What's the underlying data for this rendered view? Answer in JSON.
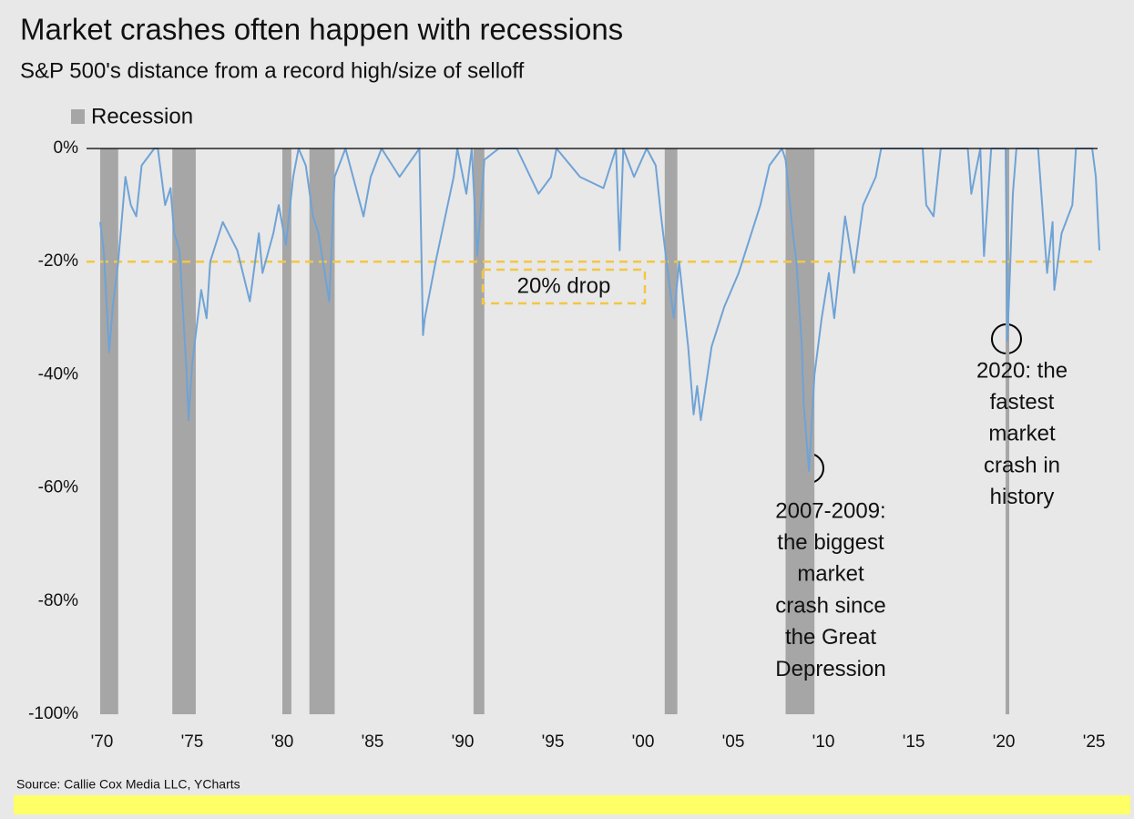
{
  "chart_data": {
    "type": "line",
    "title": "Market crashes often happen with recessions",
    "subtitle": "S&P 500's distance from a record high/size of selloff",
    "source": "Source: Callie Cox Media LLC, YCharts",
    "color": "#6fa3d6",
    "x": [
      1969.9,
      1970.1,
      1970.4,
      1970.6,
      1970.9,
      1971.3,
      1971.6,
      1971.9,
      1972.2,
      1972.9,
      1973.1,
      1973.5,
      1973.8,
      1974.0,
      1974.3,
      1974.7,
      1974.8,
      1975.0,
      1975.5,
      1975.8,
      1976.0,
      1976.7,
      1977.5,
      1978.2,
      1978.7,
      1978.9,
      1979.5,
      1979.8,
      1980.2,
      1980.6,
      1980.9,
      1981.3,
      1981.7,
      1982.0,
      1982.6,
      1982.9,
      1983.5,
      1984.5,
      1984.9,
      1985.5,
      1986.5,
      1987.6,
      1987.8,
      1987.9,
      1988.5,
      1989.5,
      1989.7,
      1990.2,
      1990.5,
      1990.8,
      1991.2,
      1992.0,
      1993.0,
      1994.2,
      1994.9,
      1995.2,
      1996.5,
      1997.8,
      1998.5,
      1998.7,
      1998.9,
      1999.5,
      2000.2,
      2000.7,
      2001.0,
      2001.3,
      2001.7,
      2002.0,
      2002.5,
      2002.8,
      2003.0,
      2003.2,
      2003.8,
      2004.5,
      2005.3,
      2006.5,
      2007.0,
      2007.7,
      2007.9,
      2008.3,
      2008.5,
      2008.8,
      2008.9,
      2009.2,
      2009.5,
      2009.9,
      2010.3,
      2010.6,
      2011.2,
      2011.7,
      2012.2,
      2012.9,
      2013.2,
      2014.0,
      2015.5,
      2015.7,
      2016.1,
      2016.5,
      2017.0,
      2018.0,
      2018.2,
      2018.7,
      2018.9,
      2019.3,
      2019.9,
      2020.1,
      2020.2,
      2020.5,
      2020.7,
      2021.5,
      2021.9,
      2022.4,
      2022.7,
      2022.8,
      2023.2,
      2023.8,
      2024.0,
      2024.5,
      2024.9,
      2025.1,
      2025.3
    ],
    "values": [
      -13,
      -18,
      -36,
      -28,
      -20,
      -5,
      -10,
      -12,
      -3,
      0,
      0,
      -10,
      -7,
      -15,
      -18,
      -40,
      -48,
      -38,
      -25,
      -30,
      -20,
      -13,
      -18,
      -27,
      -15,
      -22,
      -15,
      -10,
      -17,
      -5,
      0,
      -3,
      -12,
      -15,
      -27,
      -5,
      0,
      -12,
      -5,
      0,
      -5,
      0,
      -33,
      -30,
      -20,
      -5,
      0,
      -8,
      0,
      -19,
      -2,
      0,
      0,
      -8,
      -5,
      0,
      -5,
      -7,
      0,
      -18,
      0,
      -5,
      0,
      -3,
      -12,
      -20,
      -30,
      -20,
      -35,
      -47,
      -42,
      -48,
      -35,
      -28,
      -22,
      -10,
      -3,
      0,
      -2,
      -15,
      -20,
      -35,
      -45,
      -57,
      -40,
      -30,
      -22,
      -30,
      -12,
      -22,
      -10,
      -5,
      0,
      0,
      0,
      -10,
      -12,
      0,
      0,
      0,
      -8,
      0,
      -19,
      0,
      0,
      0,
      -34,
      -8,
      0,
      0,
      0,
      -22,
      -13,
      -25,
      -15,
      -10,
      0,
      0,
      0,
      -5,
      -18
    ],
    "xlim": [
      1969.8,
      2025.5
    ],
    "xticks": [
      {
        "value": 1970,
        "label": "'70"
      },
      {
        "value": 1975,
        "label": "'75"
      },
      {
        "value": 1980,
        "label": "'80"
      },
      {
        "value": 1985,
        "label": "'85"
      },
      {
        "value": 1990,
        "label": "'90"
      },
      {
        "value": 1995,
        "label": "'95"
      },
      {
        "value": 2000,
        "label": "'00"
      },
      {
        "value": 2005,
        "label": "'05"
      },
      {
        "value": 2010,
        "label": "'10"
      },
      {
        "value": 2015,
        "label": "'15"
      },
      {
        "value": 2020,
        "label": "'20"
      },
      {
        "value": 2025,
        "label": "'25"
      }
    ],
    "ylim": [
      -100,
      0
    ],
    "yticks": [
      {
        "value": 0,
        "label": "0%"
      },
      {
        "value": -20,
        "label": "-20%"
      },
      {
        "value": -40,
        "label": "-40%"
      },
      {
        "value": -60,
        "label": "-60%"
      },
      {
        "value": -80,
        "label": "-80%"
      },
      {
        "value": -100,
        "label": "-100%"
      }
    ],
    "recessions": {
      "name": "Recession",
      "color": "#a6a6a6",
      "spans": [
        [
          1969.9,
          1970.9
        ],
        [
          1973.9,
          1975.2
        ],
        [
          1980.0,
          1980.5
        ],
        [
          1981.5,
          1982.9
        ],
        [
          1990.6,
          1991.2
        ],
        [
          2001.2,
          2001.9
        ],
        [
          2007.9,
          2009.5
        ],
        [
          2020.1,
          2020.3
        ]
      ]
    },
    "reference_line": {
      "value": -20,
      "color": "#f2c744",
      "label": "20% drop"
    },
    "annotations": [
      {
        "lines": [
          "2007-2009:",
          "the biggest",
          "market",
          "crash since",
          "the Great",
          "Depression"
        ]
      },
      {
        "lines": [
          "2020: the",
          "fastest",
          "market",
          "crash in",
          "history"
        ]
      }
    ]
  }
}
